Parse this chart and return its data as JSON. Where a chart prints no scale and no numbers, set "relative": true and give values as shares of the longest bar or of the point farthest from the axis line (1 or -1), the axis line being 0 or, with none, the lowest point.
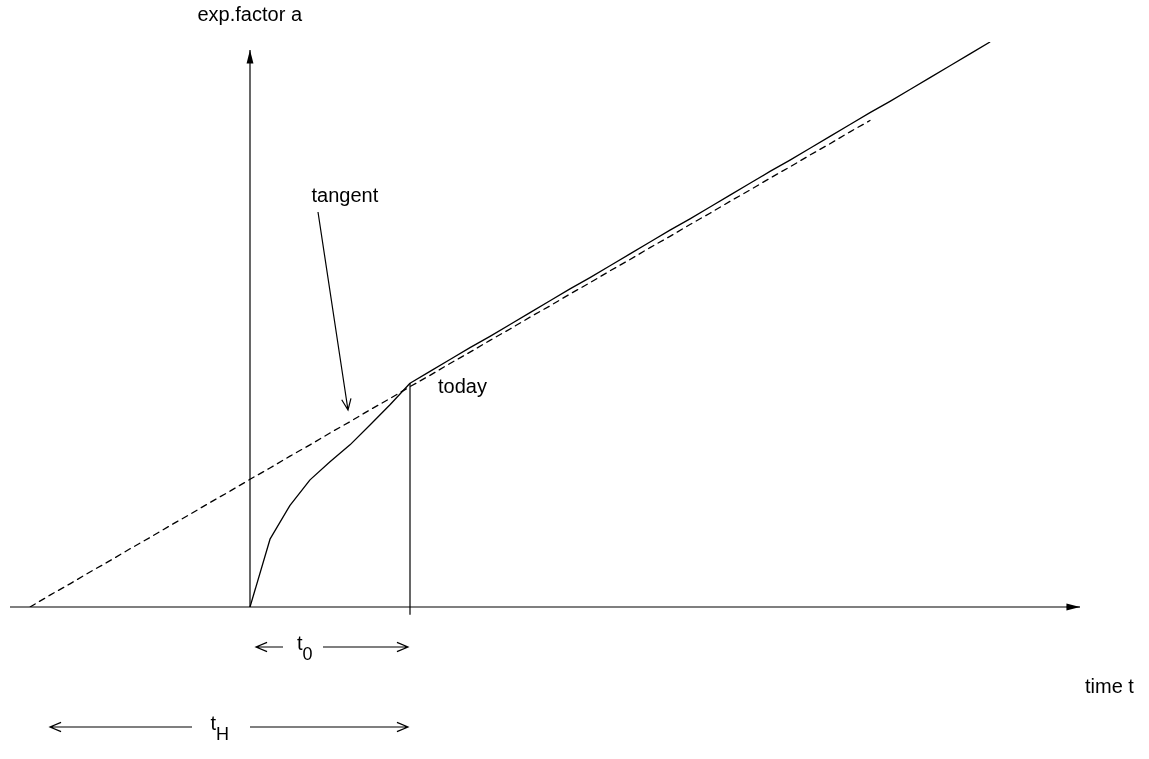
{
  "chart_data": {
    "type": "line",
    "ylabel": "exp.factor a",
    "relative": true,
    "tick_labels": false,
    "grid": false,
    "legend": false,
    "marker": "none",
    "categories": [
      null,
      null,
      null,
      null,
      null,
      null,
      null,
      null,
      null,
      null,
      null,
      null,
      null,
      null,
      null,
      null,
      null,
      null,
      null,
      null,
      null,
      null,
      null,
      null,
      null,
      null,
      null,
      null,
      null,
      null,
      null,
      null,
      null,
      null,
      null,
      null,
      null,
      null,
      null,
      null,
      null,
      null,
      null,
      null,
      null,
      null,
      null,
      null,
      null
    ],
    "series": [
      {
        "color": "#000000",
        "line_style": "solid",
        "values": [
          null,
          null,
          null,
          null,
          null,
          null,
          null,
          null,
          null,
          null,
          null,
          0,
          0.12,
          0.18,
          0.225,
          0.257,
          0.287,
          0.322,
          0.358,
          0.396,
          0.417,
          0.438,
          0.459,
          0.479,
          0.5,
          0.521,
          0.542,
          0.563,
          0.583,
          0.604,
          0.625,
          0.646,
          0.667,
          0.687,
          0.708,
          0.729,
          0.75,
          0.771,
          0.791,
          0.812,
          0.833,
          0.854,
          0.875,
          0.895,
          0.916,
          0.937,
          0.958,
          0.979,
          1
        ]
      },
      {
        "color": "#000000",
        "line_style": "dashed",
        "values": [
          0,
          0.021,
          0.041,
          0.062,
          0.082,
          0.103,
          0.123,
          0.144,
          0.164,
          0.185,
          0.205,
          0.226,
          0.246,
          0.267,
          0.287,
          0.308,
          0.328,
          0.349,
          0.369,
          0.39,
          0.41,
          0.431,
          0.451,
          0.472,
          0.492,
          0.513,
          0.533,
          0.554,
          0.574,
          0.595,
          0.615,
          0.636,
          0.656,
          0.677,
          0.697,
          0.718,
          0.738,
          0.759,
          0.779,
          0.8,
          0.82,
          0.841,
          0.861,
          null,
          null,
          null,
          null,
          null,
          null
        ]
      }
    ],
    "annotations": [
      "tangent",
      "today",
      "t$_{0}$",
      "t$_{H}$",
      "time t"
    ]
  }
}
